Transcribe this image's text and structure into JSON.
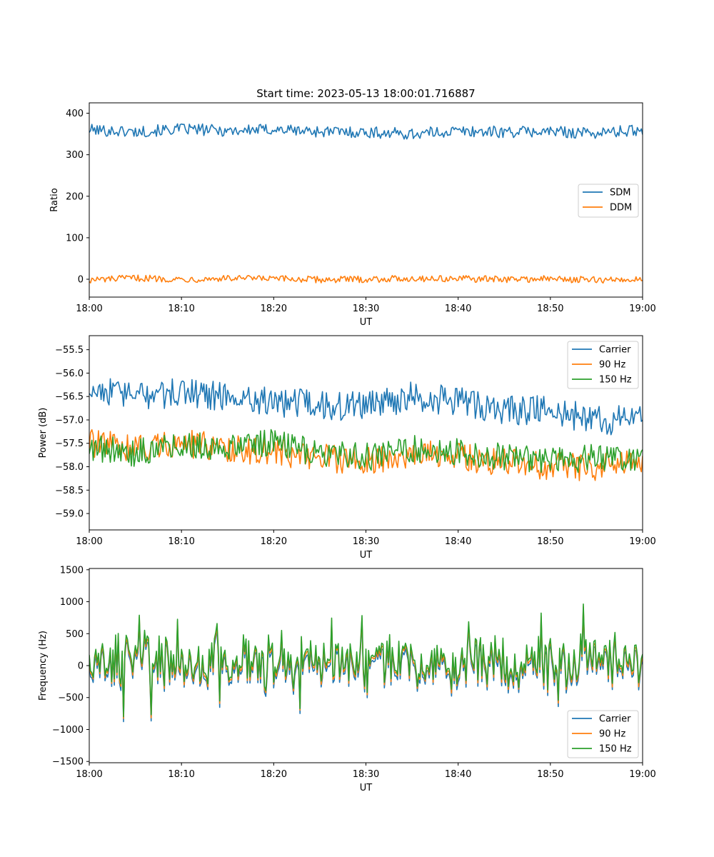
{
  "chart_data": [
    {
      "type": "line",
      "title": "Start time: 2023-05-13 18:00:01.716887",
      "xlabel": "UT",
      "ylabel": "Ratio",
      "xlim": [
        "18:00",
        "19:00"
      ],
      "xticks": [
        "18:00",
        "18:10",
        "18:20",
        "18:30",
        "18:40",
        "18:50",
        "19:00"
      ],
      "ylim": [
        -43,
        425
      ],
      "yticks": [
        0,
        100,
        200,
        300,
        400
      ],
      "grid": false,
      "legend": "center-right",
      "colors": [
        "#1f77b4",
        "#ff7f0e"
      ],
      "x_minutes": [
        0,
        5,
        10,
        15,
        20,
        25,
        30,
        35,
        40,
        45,
        50,
        55,
        60
      ],
      "series": [
        {
          "name": "SDM",
          "values": [
            360,
            355,
            362,
            358,
            361,
            356,
            354,
            350,
            357,
            355,
            356,
            352,
            360
          ]
        },
        {
          "name": "DDM",
          "values": [
            -2,
            3,
            0,
            2,
            1,
            -1,
            0,
            2,
            1,
            0,
            1,
            -2,
            0
          ]
        }
      ]
    },
    {
      "type": "line",
      "title": "",
      "xlabel": "UT",
      "ylabel": "Power (dB)",
      "xlim": [
        "18:00",
        "19:00"
      ],
      "xticks": [
        "18:00",
        "18:10",
        "18:20",
        "18:30",
        "18:40",
        "18:50",
        "19:00"
      ],
      "ylim": [
        -59.35,
        -55.2
      ],
      "yticks": [
        -55.5,
        -56.0,
        -56.5,
        -57.0,
        -57.5,
        -58.0,
        -58.5,
        -59.0
      ],
      "yticklabels": [
        "−55.5",
        "−56.0",
        "−56.5",
        "−57.0",
        "−57.5",
        "−58.0",
        "−58.5",
        "−59.0"
      ],
      "grid": false,
      "legend": "top-right",
      "colors": [
        "#1f77b4",
        "#ff7f0e",
        "#2ca02c"
      ],
      "x_minutes": [
        0,
        5,
        10,
        15,
        20,
        25,
        30,
        35,
        40,
        45,
        50,
        55,
        60
      ],
      "series": [
        {
          "name": "Carrier",
          "values": [
            -56.3,
            -56.5,
            -56.4,
            -56.5,
            -56.6,
            -56.7,
            -56.7,
            -56.5,
            -56.6,
            -56.8,
            -56.8,
            -57.0,
            -57.0
          ]
        },
        {
          "name": "90 Hz",
          "values": [
            -57.5,
            -57.6,
            -57.5,
            -57.6,
            -57.7,
            -57.8,
            -57.9,
            -57.7,
            -57.8,
            -57.9,
            -58.0,
            -58.0,
            -57.9
          ]
        },
        {
          "name": "150 Hz",
          "values": [
            -57.6,
            -57.7,
            -57.5,
            -57.6,
            -57.5,
            -57.7,
            -57.8,
            -57.6,
            -57.7,
            -57.8,
            -57.9,
            -57.8,
            -57.9
          ]
        }
      ]
    },
    {
      "type": "line",
      "title": "",
      "xlabel": "UT",
      "ylabel": "Frequency (Hz)",
      "xlim": [
        "18:00",
        "19:00"
      ],
      "xticks": [
        "18:00",
        "18:10",
        "18:20",
        "18:30",
        "18:40",
        "18:50",
        "19:00"
      ],
      "ylim": [
        -1520,
        1520
      ],
      "yticks": [
        1500,
        1000,
        500,
        0,
        -500,
        -1000,
        -1500
      ],
      "yticklabels": [
        "1500",
        "1000",
        "500",
        "0",
        "−500",
        "−1000",
        "−1500"
      ],
      "grid": false,
      "legend": "bottom-right",
      "colors": [
        "#1f77b4",
        "#ff7f0e",
        "#2ca02c"
      ],
      "x_minutes": [
        0,
        5,
        10,
        15,
        20,
        25,
        30,
        35,
        40,
        45,
        50,
        55,
        60
      ],
      "series": [
        {
          "name": "Carrier",
          "values": [
            -30,
            -20,
            -25,
            -20,
            -30,
            -25,
            -20,
            -30,
            -25,
            -20,
            -30,
            -25,
            -30
          ]
        },
        {
          "name": "90 Hz",
          "values": [
            20,
            25,
            20,
            25,
            20,
            25,
            30,
            20,
            25,
            30,
            20,
            25,
            20
          ]
        },
        {
          "name": "150 Hz",
          "values": [
            60,
            70,
            65,
            70,
            60,
            65,
            70,
            60,
            65,
            75,
            60,
            70,
            65
          ]
        }
      ]
    }
  ]
}
